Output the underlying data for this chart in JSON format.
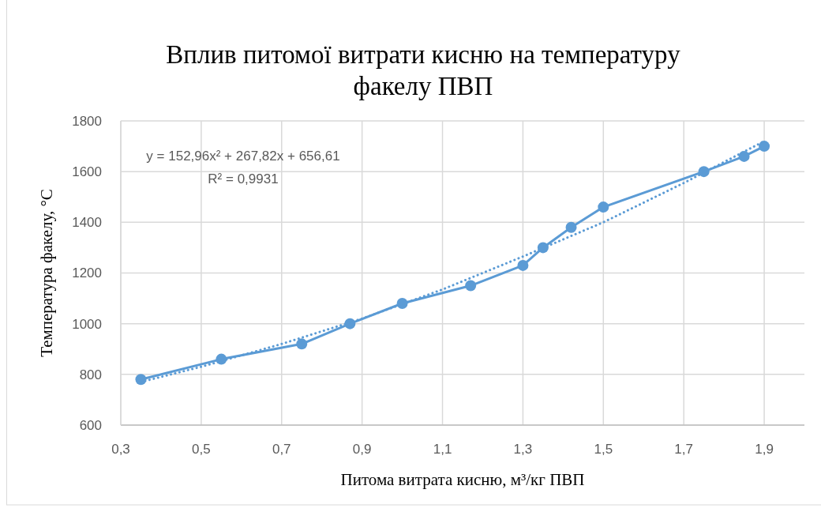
{
  "chart_data": {
    "type": "line",
    "title": "Вплив питомої витрати кисню на температуру факелу ПВП",
    "xlabel": "Питома витрата кисню, м³/кг ПВП",
    "ylabel": "Температура факелу, °C",
    "x": [
      0.35,
      0.55,
      0.75,
      0.87,
      1.0,
      1.17,
      1.3,
      1.35,
      1.42,
      1.5,
      1.75,
      1.85,
      1.9
    ],
    "series": [
      {
        "color": "#5b9bd5",
        "values": [
          780,
          860,
          920,
          1000,
          1080,
          1150,
          1230,
          1300,
          1380,
          1460,
          1600,
          1660,
          1700
        ]
      },
      {
        "type": "line",
        "color": "#5b9bd5",
        "marker": "none",
        "line_style": "dotted",
        "x": [
          0.35,
          0.5,
          0.7,
          0.9,
          1.1,
          1.3,
          1.5,
          1.7,
          1.9
        ],
        "values": [
          770,
          830,
          920,
          1020,
          1135,
          1265,
          1400,
          1555,
          1720
        ]
      }
    ],
    "xlim": [
      0.3,
      2.0
    ],
    "xticks": [
      {
        "value": 0.3,
        "label": "0,3"
      },
      {
        "value": 0.5,
        "label": "0,5"
      },
      {
        "value": 0.7,
        "label": "0,7"
      },
      {
        "value": 0.9,
        "label": "0,9"
      },
      {
        "value": 1.1,
        "label": "1,1"
      },
      {
        "value": 1.3,
        "label": "1,3"
      },
      {
        "value": 1.5,
        "label": "1,5"
      },
      {
        "value": 1.7,
        "label": "1,7"
      },
      {
        "value": 1.9,
        "label": "1,9"
      }
    ],
    "ylim": [
      600,
      1800
    ],
    "yticks": [
      600,
      800,
      1000,
      1200,
      1400,
      1600,
      1800
    ],
    "grid": true,
    "marker": "circle",
    "line_style": "solid",
    "annotations": [
      "y = 152,96x² + 267,82x + 656,61",
      "R² = 0,9931"
    ]
  }
}
